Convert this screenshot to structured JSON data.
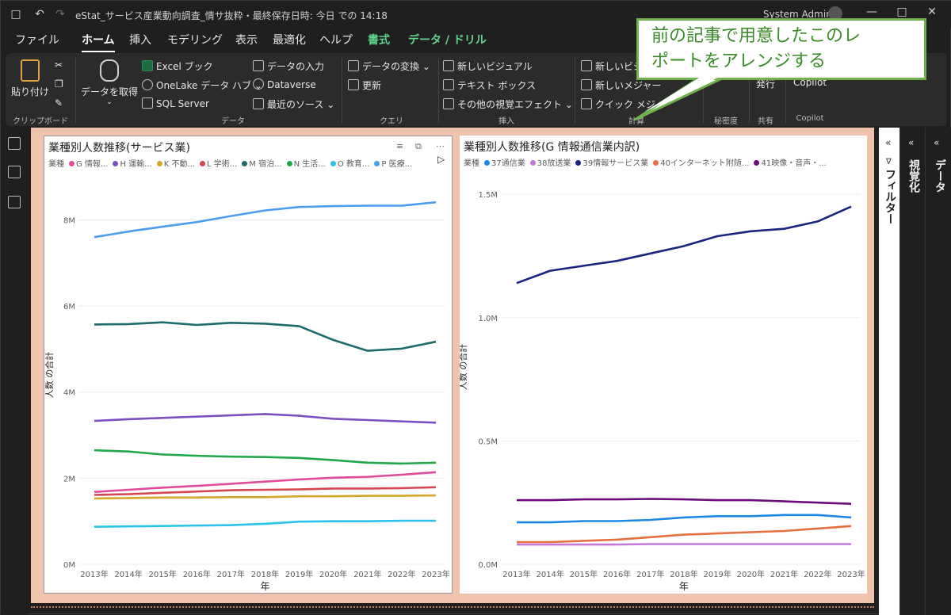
{
  "titlebar": {
    "title": "eStat_サービス産業動向調査_情サ抜粋・最終保存日時: 今日 での 14:18",
    "user": "System Admin"
  },
  "menu": {
    "tabs": [
      "ファイル",
      "ホーム",
      "挿入",
      "モデリング",
      "表示",
      "最適化",
      "ヘルプ",
      "書式",
      "データ / ドリル"
    ],
    "active": "ホーム"
  },
  "ribbon": {
    "clipboard": {
      "paste": "貼り付け",
      "label": "クリップボード"
    },
    "data": {
      "get_data": "データを取得",
      "excel": "Excel ブック",
      "onelake": "OneLake データ ハブ",
      "sql": "SQL Server",
      "enter": "データの入力",
      "dataverse": "Dataverse",
      "recent": "最近のソース",
      "label": "データ"
    },
    "query": {
      "transform": "データの変換",
      "refresh": "更新",
      "label": "クエリ"
    },
    "insert": {
      "visual": "新しいビジュアル",
      "textbox": "テキスト ボックス",
      "more": "その他の視覚エフェクト",
      "label": "挿入"
    },
    "calc": {
      "new_visual": "新しいビジ",
      "measure": "新しいメジャー",
      "quick": "クイック メジ",
      "label": "計算"
    },
    "sensitivity": {
      "label": "秘密度"
    },
    "share": {
      "publish": "発行",
      "label": "共有"
    },
    "copilot": {
      "btn": "Copilot",
      "label": "Copilot"
    }
  },
  "callout": {
    "line1": "前の記事で用意したこのレ",
    "line2": "ポートをアレンジする"
  },
  "panes": {
    "filter": "フィルター",
    "viz": "視覚化",
    "data": "データ"
  },
  "colors": {
    "G": "#e04b9b",
    "H": "#7b4fbf",
    "K": "#d4a72c",
    "L": "#d64550",
    "M": "#1d6b6b",
    "N": "#22a84a",
    "O": "#2cc3ea",
    "P": "#4c9cf0",
    "c37": "#1e88e5",
    "c38": "#c478d8",
    "c39": "#1a237e",
    "c40": "#e66f3f",
    "c41": "#6a0d7a"
  },
  "chart_data": [
    {
      "type": "line",
      "title": "業種別人数推移(サービス業)",
      "legend_title": "業種",
      "legend": [
        "G 情報...",
        "H 運輸...",
        "K 不動...",
        "L 学術...",
        "M 宿泊...",
        "N 生活...",
        "O 教育...",
        "P 医療..."
      ],
      "xlabel": "年",
      "ylabel": "人数 の合計",
      "categories": [
        "2013年",
        "2014年",
        "2015年",
        "2016年",
        "2017年",
        "2018年",
        "2019年",
        "2020年",
        "2021年",
        "2022年",
        "2023年"
      ],
      "yticks": [
        "0M",
        "2M",
        "4M",
        "6M",
        "8M"
      ],
      "ylim": [
        0,
        8.8
      ],
      "series": [
        {
          "name": "G 情報...",
          "color_key": "G",
          "values": [
            1.68,
            1.73,
            1.78,
            1.82,
            1.87,
            1.92,
            1.97,
            2.01,
            2.03,
            2.08,
            2.14
          ]
        },
        {
          "name": "H 運輸...",
          "color_key": "H",
          "values": [
            3.33,
            3.37,
            3.4,
            3.43,
            3.46,
            3.49,
            3.45,
            3.38,
            3.35,
            3.32,
            3.29
          ]
        },
        {
          "name": "K 不動...",
          "color_key": "K",
          "values": [
            1.53,
            1.54,
            1.55,
            1.55,
            1.56,
            1.56,
            1.58,
            1.58,
            1.59,
            1.59,
            1.6
          ]
        },
        {
          "name": "L 学術...",
          "color_key": "L",
          "values": [
            1.61,
            1.63,
            1.66,
            1.69,
            1.72,
            1.73,
            1.74,
            1.76,
            1.76,
            1.77,
            1.79
          ]
        },
        {
          "name": "M 宿泊...",
          "color_key": "M",
          "values": [
            5.57,
            5.58,
            5.62,
            5.56,
            5.61,
            5.59,
            5.53,
            5.21,
            4.96,
            5.01,
            5.17
          ]
        },
        {
          "name": "N 生活...",
          "color_key": "N",
          "values": [
            2.65,
            2.62,
            2.55,
            2.52,
            2.5,
            2.49,
            2.47,
            2.42,
            2.36,
            2.34,
            2.36
          ]
        },
        {
          "name": "O 教育...",
          "color_key": "O",
          "values": [
            0.87,
            0.88,
            0.89,
            0.9,
            0.91,
            0.94,
            0.99,
            1.0,
            1.0,
            1.01,
            1.01
          ]
        },
        {
          "name": "P 医療...",
          "color_key": "P",
          "values": [
            7.6,
            7.73,
            7.84,
            7.95,
            8.09,
            8.22,
            8.3,
            8.32,
            8.33,
            8.33,
            8.41
          ]
        }
      ]
    },
    {
      "type": "line",
      "title": "業種別人数推移(G 情報通信業内訳)",
      "legend_title": "業種",
      "legend": [
        "37通信業",
        "38放送業",
        "39情報サービス業",
        "40インターネット附随...",
        "41映像・音声・..."
      ],
      "xlabel": "年",
      "ylabel": "人数 の合計",
      "categories": [
        "2013年",
        "2014年",
        "2015年",
        "2016年",
        "2017年",
        "2018年",
        "2019年",
        "2020年",
        "2021年",
        "2022年",
        "2023年"
      ],
      "yticks": [
        "0.0M",
        "0.5M",
        "1.0M",
        "1.5M"
      ],
      "ylim": [
        0,
        1.6
      ],
      "series": [
        {
          "name": "37通信業",
          "color_key": "c37",
          "values": [
            0.17,
            0.17,
            0.175,
            0.175,
            0.18,
            0.19,
            0.195,
            0.195,
            0.2,
            0.2,
            0.19
          ]
        },
        {
          "name": "38放送業",
          "color_key": "c38",
          "values": [
            0.08,
            0.08,
            0.08,
            0.08,
            0.082,
            0.082,
            0.082,
            0.082,
            0.082,
            0.082,
            0.082
          ]
        },
        {
          "name": "39情報サービス業",
          "color_key": "c39",
          "values": [
            1.14,
            1.19,
            1.21,
            1.23,
            1.26,
            1.29,
            1.33,
            1.35,
            1.36,
            1.39,
            1.45
          ]
        },
        {
          "name": "40インターネット附随...",
          "color_key": "c40",
          "values": [
            0.09,
            0.09,
            0.095,
            0.1,
            0.11,
            0.12,
            0.125,
            0.13,
            0.135,
            0.145,
            0.155
          ]
        },
        {
          "name": "41映像・音声・...",
          "color_key": "c41",
          "values": [
            0.26,
            0.26,
            0.263,
            0.263,
            0.265,
            0.263,
            0.26,
            0.26,
            0.255,
            0.25,
            0.245
          ]
        }
      ]
    }
  ]
}
